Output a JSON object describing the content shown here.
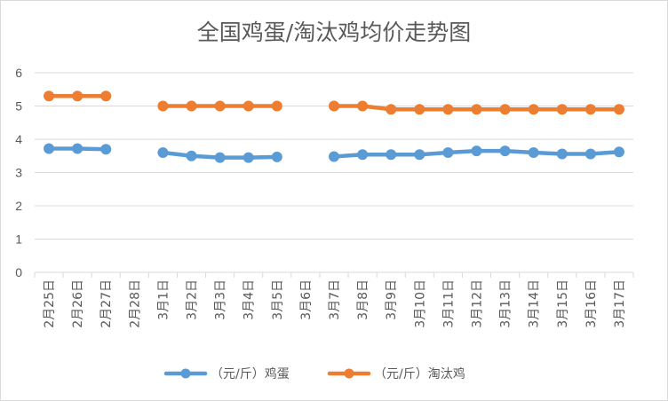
{
  "chart_data": {
    "type": "line",
    "title": "全国鸡蛋/淘汰鸡均价走势图",
    "categories": [
      "2月25日",
      "2月26日",
      "2月27日",
      "2月28日",
      "3月1日",
      "3月2日",
      "3月3日",
      "3月4日",
      "3月5日",
      "3月6日",
      "3月7日",
      "3月8日",
      "3月9日",
      "3月10日",
      "3月11日",
      "3月12日",
      "3月13日",
      "3月14日",
      "3月15日",
      "3月16日",
      "3月17日"
    ],
    "ylim": [
      0,
      6
    ],
    "yticks": [
      0,
      1,
      2,
      3,
      4,
      5,
      6
    ],
    "grid": true,
    "legend_position": "bottom",
    "series": [
      {
        "name": "（元/斤）鸡蛋",
        "color": "#5b9bd5",
        "values": [
          3.72,
          3.72,
          3.7,
          null,
          3.6,
          3.5,
          3.45,
          3.45,
          3.47,
          null,
          3.48,
          3.54,
          3.54,
          3.54,
          3.6,
          3.65,
          3.65,
          3.6,
          3.56,
          3.56,
          3.62
        ]
      },
      {
        "name": "（元/斤）淘汰鸡",
        "color": "#ed7d31",
        "values": [
          5.3,
          5.3,
          5.3,
          null,
          5.0,
          5.0,
          5.0,
          5.0,
          5.0,
          null,
          5.0,
          5.0,
          4.9,
          4.9,
          4.9,
          4.9,
          4.9,
          4.9,
          4.9,
          4.9,
          4.9
        ]
      }
    ]
  }
}
